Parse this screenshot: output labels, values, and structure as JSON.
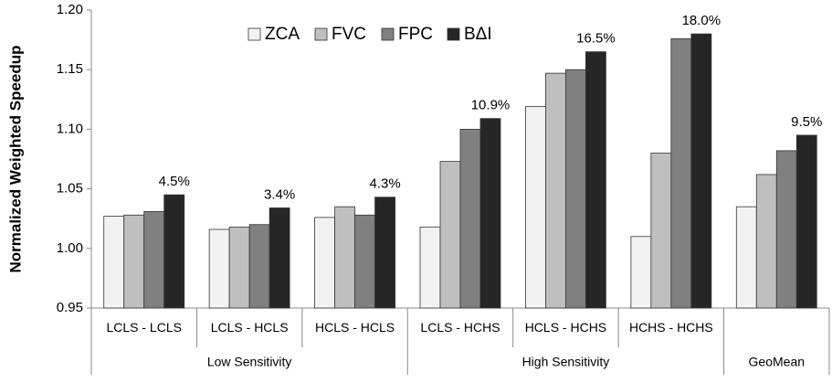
{
  "chart_data": {
    "type": "bar",
    "y_label": "Normalized Weighted Speedup",
    "categories": [
      "LCLS - LCLS",
      "LCLS - HCLS",
      "HCLS - HCLS",
      "LCLS - HCHS",
      "HCLS - HCHS",
      "HCHS - HCHS",
      null
    ],
    "groups": [
      {
        "name": "Low Sensitivity",
        "count": 3
      },
      {
        "name": "High Sensitivity",
        "count": 3
      },
      {
        "name": "GeoMean",
        "count": 1
      }
    ],
    "series": [
      {
        "name": "ZCA",
        "color": "#f2f2f2",
        "values": [
          1.027,
          1.016,
          1.026,
          1.018,
          1.119,
          1.01,
          1.035
        ]
      },
      {
        "name": "FVC",
        "color": "#bfbfbf",
        "values": [
          1.028,
          1.018,
          1.035,
          1.073,
          1.147,
          1.08,
          1.062
        ]
      },
      {
        "name": "FPC",
        "color": "#808080",
        "values": [
          1.031,
          1.02,
          1.028,
          1.1,
          1.15,
          1.176,
          1.082
        ]
      },
      {
        "name": "BΔI",
        "color": "#262626",
        "values": [
          1.045,
          1.034,
          1.043,
          1.109,
          1.165,
          1.18,
          1.095
        ],
        "value_labels": [
          "4.5%",
          "3.4%",
          "4.3%",
          "10.9%",
          "16.5%",
          "18.0%",
          "9.5%"
        ]
      }
    ],
    "ylim": [
      0.95,
      1.2
    ],
    "yticks": [
      0.95,
      {
        "value": 1,
        "label": "1.00"
      },
      1.05,
      {
        "value": 1.1,
        "label": "1.10"
      },
      1.15,
      {
        "value": 1.2,
        "label": "1.20"
      }
    ],
    "grid": false,
    "legend": "top"
  }
}
